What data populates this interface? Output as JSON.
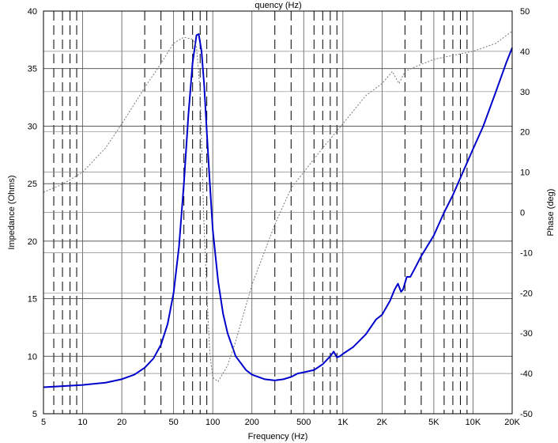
{
  "chart_data": {
    "type": "line",
    "title_fragment": "quency (Hz)",
    "xlabel": "Frequency (Hz)",
    "ylabel": "Impedance (Ohms)",
    "y2label": "Phase (deg)",
    "x_scale": "log",
    "xlim": [
      5,
      20000
    ],
    "ylim": [
      5,
      40
    ],
    "y2lim": [
      -50,
      50
    ],
    "grid": true,
    "x_ticks": [
      {
        "value": 5,
        "label": "5"
      },
      {
        "value": 10,
        "label": "10"
      },
      {
        "value": 20,
        "label": "20"
      },
      {
        "value": 50,
        "label": "50"
      },
      {
        "value": 100,
        "label": "100"
      },
      {
        "value": 200,
        "label": "200"
      },
      {
        "value": 500,
        "label": "500"
      },
      {
        "value": 1000,
        "label": "1K"
      },
      {
        "value": 2000,
        "label": "2K"
      },
      {
        "value": 5000,
        "label": "5K"
      },
      {
        "value": 10000,
        "label": "10K"
      },
      {
        "value": 20000,
        "label": "20K"
      }
    ],
    "y_ticks": [
      "5",
      "10",
      "15",
      "20",
      "25",
      "30",
      "35",
      "40"
    ],
    "y2_ticks": [
      "-50",
      "-40",
      "-30",
      "-20",
      "-10",
      "0",
      "10",
      "20",
      "30",
      "40",
      "50"
    ],
    "series": [
      {
        "axis": "left",
        "color": "#0000cc",
        "style": "solid",
        "points": [
          [
            5,
            7.3
          ],
          [
            7,
            7.4
          ],
          [
            10,
            7.5
          ],
          [
            15,
            7.7
          ],
          [
            20,
            8.0
          ],
          [
            25,
            8.4
          ],
          [
            30,
            9.0
          ],
          [
            35,
            9.8
          ],
          [
            40,
            11.0
          ],
          [
            45,
            12.8
          ],
          [
            50,
            15.5
          ],
          [
            55,
            19.5
          ],
          [
            60,
            25.0
          ],
          [
            65,
            31.0
          ],
          [
            70,
            35.5
          ],
          [
            75,
            37.9
          ],
          [
            78,
            38.0
          ],
          [
            82,
            36.5
          ],
          [
            86,
            33.5
          ],
          [
            90,
            29.5
          ],
          [
            95,
            25.0
          ],
          [
            100,
            21.0
          ],
          [
            110,
            16.5
          ],
          [
            120,
            13.7
          ],
          [
            130,
            12.0
          ],
          [
            150,
            10.0
          ],
          [
            180,
            8.8
          ],
          [
            200,
            8.4
          ],
          [
            250,
            8.0
          ],
          [
            300,
            7.9
          ],
          [
            350,
            8.0
          ],
          [
            400,
            8.2
          ],
          [
            450,
            8.5
          ],
          [
            500,
            8.6
          ],
          [
            600,
            8.8
          ],
          [
            700,
            9.3
          ],
          [
            800,
            10.0
          ],
          [
            850,
            10.4
          ],
          [
            900,
            9.9
          ],
          [
            950,
            10.0
          ],
          [
            1000,
            10.2
          ],
          [
            1200,
            10.8
          ],
          [
            1500,
            11.9
          ],
          [
            1800,
            13.2
          ],
          [
            2000,
            13.6
          ],
          [
            2300,
            14.8
          ],
          [
            2500,
            15.8
          ],
          [
            2650,
            16.3
          ],
          [
            2800,
            15.6
          ],
          [
            2900,
            15.8
          ],
          [
            3100,
            16.9
          ],
          [
            3300,
            16.9
          ],
          [
            3600,
            17.7
          ],
          [
            4000,
            18.7
          ],
          [
            5000,
            20.5
          ],
          [
            6000,
            22.5
          ],
          [
            7000,
            24.0
          ],
          [
            8000,
            25.5
          ],
          [
            10000,
            28.0
          ],
          [
            12000,
            30.0
          ],
          [
            15000,
            33.0
          ],
          [
            18000,
            35.5
          ],
          [
            20000,
            36.8
          ]
        ]
      },
      {
        "axis": "right",
        "color": "#777777",
        "style": "dotted",
        "points": [
          [
            5,
            5.0
          ],
          [
            7,
            7.0
          ],
          [
            10,
            10.0
          ],
          [
            15,
            16.0
          ],
          [
            20,
            22.0
          ],
          [
            30,
            31.0
          ],
          [
            40,
            37.0
          ],
          [
            50,
            42.0
          ],
          [
            60,
            43.5
          ],
          [
            70,
            43.0
          ],
          [
            75,
            41.0
          ],
          [
            80,
            30.0
          ],
          [
            85,
            0.0
          ],
          [
            90,
            -20.0
          ],
          [
            95,
            -35.0
          ],
          [
            100,
            -41.0
          ],
          [
            110,
            -42.0
          ],
          [
            130,
            -38.0
          ],
          [
            150,
            -32.0
          ],
          [
            200,
            -18.0
          ],
          [
            300,
            -3.0
          ],
          [
            400,
            6.0
          ],
          [
            500,
            10.0
          ],
          [
            700,
            16.0
          ],
          [
            1000,
            22.0
          ],
          [
            1500,
            29.0
          ],
          [
            2000,
            32.0
          ],
          [
            2400,
            35.0
          ],
          [
            2700,
            32.0
          ],
          [
            3000,
            35.0
          ],
          [
            3500,
            36.0
          ],
          [
            5000,
            38.0
          ],
          [
            7000,
            39.0
          ],
          [
            10000,
            40.0
          ],
          [
            15000,
            42.0
          ],
          [
            20000,
            45.0
          ]
        ]
      }
    ]
  }
}
